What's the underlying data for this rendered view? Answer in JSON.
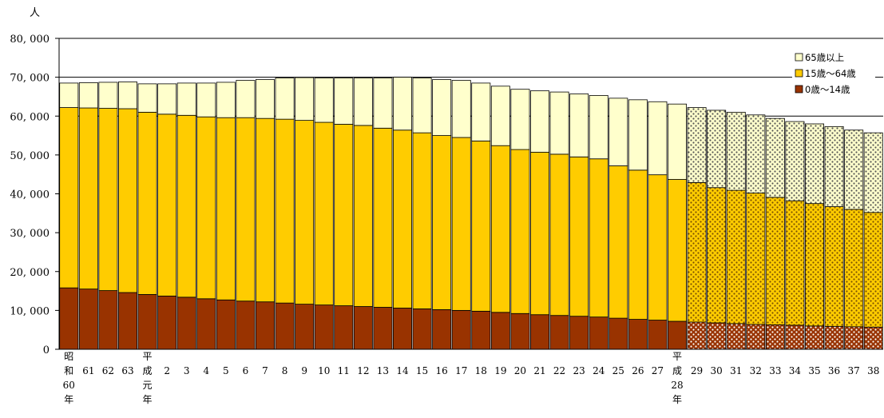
{
  "chart_data": {
    "type": "bar",
    "stacked": true,
    "unit_label": "人",
    "ylim": [
      0,
      80000
    ],
    "yticks": [
      0,
      10000,
      20000,
      30000,
      40000,
      50000,
      60000,
      70000,
      80000
    ],
    "ytick_labels": [
      "0",
      "10, 000",
      "20, 000",
      "30, 000",
      "40, 000",
      "50, 000",
      "60, 000",
      "70, 000",
      "80, 000"
    ],
    "gridlines": [
      60000,
      70000,
      80000
    ],
    "legend_position": "top-right",
    "categories": [
      "昭和60年",
      "61",
      "62",
      "63",
      "平成元年",
      "2",
      "3",
      "4",
      "5",
      "6",
      "7",
      "8",
      "9",
      "10",
      "11",
      "12",
      "13",
      "14",
      "15",
      "16",
      "17",
      "18",
      "19",
      "20",
      "21",
      "22",
      "23",
      "24",
      "25",
      "26",
      "27",
      "平成28年",
      "29",
      "30",
      "31",
      "32",
      "33",
      "34",
      "35",
      "36",
      "37",
      "38"
    ],
    "category_labels": [
      [
        "昭",
        "和",
        "60",
        "年"
      ],
      [
        "61"
      ],
      [
        "62"
      ],
      [
        "63"
      ],
      [
        "平",
        "成",
        "元",
        "年"
      ],
      [
        "2"
      ],
      [
        "3"
      ],
      [
        "4"
      ],
      [
        "5"
      ],
      [
        "6"
      ],
      [
        "7"
      ],
      [
        "8"
      ],
      [
        "9"
      ],
      [
        "10"
      ],
      [
        "11"
      ],
      [
        "12"
      ],
      [
        "13"
      ],
      [
        "14"
      ],
      [
        "15"
      ],
      [
        "16"
      ],
      [
        "17"
      ],
      [
        "18"
      ],
      [
        "19"
      ],
      [
        "20"
      ],
      [
        "21"
      ],
      [
        "22"
      ],
      [
        "23"
      ],
      [
        "24"
      ],
      [
        "25"
      ],
      [
        "26"
      ],
      [
        "27"
      ],
      [
        "平",
        "成",
        "28",
        "年"
      ],
      [
        "29"
      ],
      [
        "30"
      ],
      [
        "31"
      ],
      [
        "32"
      ],
      [
        "33"
      ],
      [
        "34"
      ],
      [
        "35"
      ],
      [
        "36"
      ],
      [
        "37"
      ],
      [
        "38"
      ]
    ],
    "projected_from_index": 32,
    "series": [
      {
        "name": "0歳～14歳",
        "color": "#993300",
        "values": [
          15800,
          15500,
          15100,
          14600,
          14100,
          13700,
          13400,
          13000,
          12700,
          12400,
          12200,
          11900,
          11600,
          11400,
          11200,
          11000,
          10800,
          10600,
          10400,
          10200,
          10000,
          9800,
          9500,
          9200,
          8900,
          8700,
          8500,
          8300,
          8000,
          7700,
          7500,
          7200,
          7000,
          6800,
          6600,
          6400,
          6300,
          6200,
          6000,
          5900,
          5800,
          5700
        ]
      },
      {
        "name": "15歳～64歳",
        "color": "#FFCC00",
        "values": [
          46400,
          46600,
          46900,
          47300,
          46900,
          46800,
          46800,
          46800,
          46900,
          47200,
          47200,
          47300,
          47300,
          47000,
          46700,
          46600,
          46100,
          45800,
          45300,
          44800,
          44500,
          43800,
          42900,
          42200,
          41800,
          41500,
          41000,
          40700,
          39200,
          38400,
          37400,
          36500,
          35900,
          34800,
          34300,
          33800,
          32800,
          32000,
          31500,
          30800,
          30200,
          29500
        ]
      },
      {
        "name": "65歳以上",
        "color": "#FFFFCC",
        "values": [
          6300,
          6500,
          6700,
          6900,
          7300,
          7800,
          8300,
          8700,
          9100,
          9600,
          10000,
          10600,
          11000,
          11400,
          11900,
          12200,
          12900,
          13600,
          14100,
          14400,
          14700,
          14900,
          15300,
          15500,
          15800,
          16000,
          16200,
          16300,
          17400,
          18100,
          18800,
          19400,
          19300,
          19900,
          20100,
          20100,
          20300,
          20400,
          20500,
          20600,
          20400,
          20500
        ]
      }
    ]
  }
}
